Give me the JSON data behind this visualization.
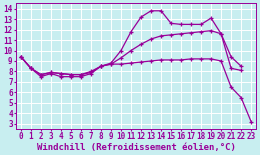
{
  "bg_color": "#c8eef0",
  "grid_color": "#b0dde0",
  "line_color": "#990099",
  "marker": "+",
  "markersize": 3.5,
  "linewidth": 0.9,
  "xlabel": "Windchill (Refroidissement éolien,°C)",
  "xlabel_fontsize": 6.5,
  "tick_fontsize": 5.5,
  "xlim": [
    -0.5,
    23.5
  ],
  "ylim": [
    2.5,
    14.5
  ],
  "xticks": [
    0,
    1,
    2,
    3,
    4,
    5,
    6,
    7,
    8,
    9,
    10,
    11,
    12,
    13,
    14,
    15,
    16,
    17,
    18,
    19,
    20,
    21,
    22,
    23
  ],
  "yticks": [
    3,
    4,
    5,
    6,
    7,
    8,
    9,
    10,
    11,
    12,
    13,
    14
  ],
  "line1_x": [
    0,
    1,
    2,
    3,
    4,
    5,
    6,
    7,
    8,
    9,
    10,
    11,
    12,
    13,
    14,
    15,
    16,
    17,
    18,
    19,
    20,
    21,
    22
  ],
  "line1_y": [
    9.4,
    8.3,
    7.5,
    7.8,
    7.5,
    7.5,
    7.5,
    7.8,
    8.5,
    8.8,
    10.0,
    11.8,
    13.2,
    13.8,
    13.8,
    12.6,
    12.5,
    12.5,
    12.5,
    13.1,
    11.6,
    8.3,
    8.1
  ],
  "line2_x": [
    0,
    1,
    2,
    3,
    4,
    5,
    6,
    7,
    8,
    9,
    10,
    11,
    12,
    13,
    14,
    15,
    16,
    17,
    18,
    19,
    20,
    21,
    22
  ],
  "line2_y": [
    9.4,
    8.3,
    7.7,
    7.9,
    7.8,
    7.7,
    7.7,
    8.0,
    8.5,
    8.7,
    9.3,
    10.0,
    10.6,
    11.1,
    11.4,
    11.5,
    11.6,
    11.7,
    11.8,
    11.9,
    11.6,
    9.4,
    8.5
  ],
  "line3_x": [
    0,
    1,
    2,
    3,
    4,
    5,
    6,
    7,
    8,
    9,
    10,
    11,
    12,
    13,
    14,
    15,
    16,
    17,
    18,
    19,
    20,
    21,
    22,
    23
  ],
  "line3_y": [
    9.4,
    8.3,
    7.7,
    7.9,
    7.8,
    7.7,
    7.7,
    7.9,
    8.5,
    8.7,
    8.7,
    8.8,
    8.9,
    9.0,
    9.1,
    9.1,
    9.1,
    9.2,
    9.2,
    9.2,
    9.0,
    6.5,
    5.5,
    3.2
  ]
}
